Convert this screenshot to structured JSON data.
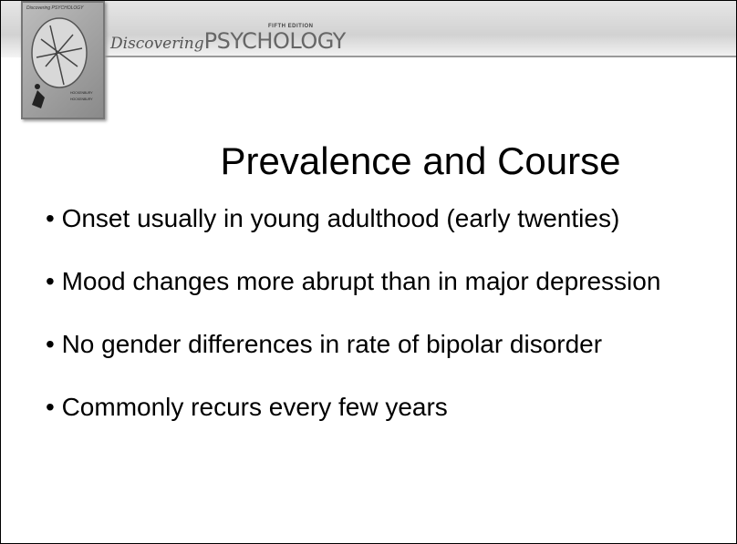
{
  "header": {
    "edition": "FIFTH EDITION",
    "brand_script": "Discovering",
    "brand": "PSYCHOLOGY"
  },
  "cover": {
    "title": "Discovering PSYCHOLOGY",
    "authors": [
      "HOCKENBURY",
      "HOCKENBURY"
    ]
  },
  "slide": {
    "title": "Prevalence and Course",
    "bullets": [
      "• Onset usually in young adulthood (early twenties)",
      "• Mood changes more abrupt than in major depression",
      "• No gender differences in rate of bipolar disorder",
      "• Commonly recurs every few years"
    ]
  }
}
